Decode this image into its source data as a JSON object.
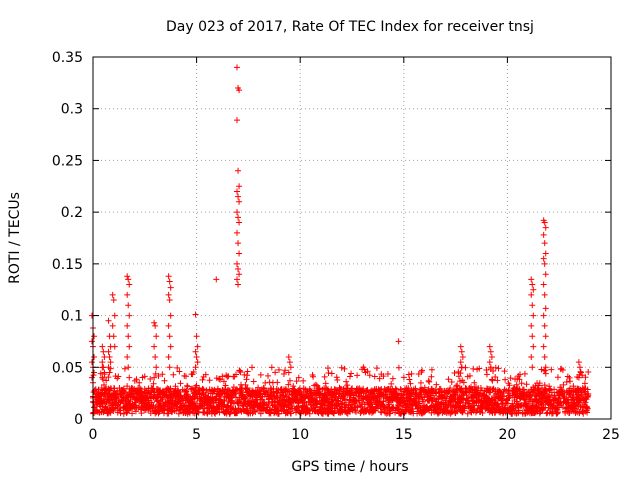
{
  "chart_data": {
    "type": "scatter",
    "title": "Day 023 of 2017, Rate Of TEC Index for receiver tnsj",
    "xlabel": "GPS time / hours",
    "ylabel": "ROTI / TECUs",
    "xlim": [
      0,
      25
    ],
    "ylim": [
      0,
      0.35
    ],
    "xticks": [
      "0",
      "5",
      "10",
      "15",
      "20",
      "25"
    ],
    "yticks": [
      "0",
      "0.05",
      "0.1",
      "0.15",
      "0.2",
      "0.25",
      "0.3",
      "0.35"
    ],
    "grid": true,
    "marker": "+",
    "color": "#ff0000",
    "baseline": {
      "x_start": 0.0,
      "x_end": 23.9,
      "typical_min": 0.005,
      "typical_max": 0.03
    },
    "clusters": [
      {
        "x": 0.0,
        "values": [
          0.1,
          0.088,
          0.08,
          0.075,
          0.07,
          0.06,
          0.055,
          0.05,
          0.045,
          0.04,
          0.035
        ]
      },
      {
        "x": 0.5,
        "values": [
          0.07,
          0.065,
          0.06,
          0.055,
          0.05,
          0.045,
          0.04
        ]
      },
      {
        "x": 0.8,
        "values": [
          0.095,
          0.08,
          0.07,
          0.065,
          0.06,
          0.055,
          0.05,
          0.045
        ]
      },
      {
        "x": 1.0,
        "values": [
          0.12,
          0.115,
          0.1,
          0.09,
          0.08,
          0.07
        ]
      },
      {
        "x": 1.7,
        "values": [
          0.138,
          0.135,
          0.13,
          0.12,
          0.11,
          0.1,
          0.09,
          0.08,
          0.07,
          0.06,
          0.05,
          0.04
        ]
      },
      {
        "x": 3.0,
        "values": [
          0.093,
          0.09,
          0.08,
          0.07,
          0.06,
          0.05,
          0.04
        ]
      },
      {
        "x": 3.7,
        "values": [
          0.138,
          0.133,
          0.127,
          0.12,
          0.115,
          0.1,
          0.09,
          0.08,
          0.07,
          0.06,
          0.05
        ]
      },
      {
        "x": 5.0,
        "values": [
          0.101,
          0.08,
          0.07,
          0.065,
          0.06,
          0.055,
          0.05
        ]
      },
      {
        "x": 6.0,
        "values": [
          0.135
        ]
      },
      {
        "x": 7.0,
        "values": [
          0.34,
          0.32,
          0.318,
          0.289,
          0.24,
          0.225,
          0.22,
          0.215,
          0.21,
          0.2,
          0.195,
          0.19,
          0.18,
          0.17,
          0.16,
          0.15,
          0.145,
          0.14,
          0.135,
          0.13
        ]
      },
      {
        "x": 9.5,
        "values": [
          0.06,
          0.055,
          0.05,
          0.045
        ]
      },
      {
        "x": 13.1,
        "values": [
          0.05,
          0.048,
          0.045
        ]
      },
      {
        "x": 14.8,
        "values": [
          0.075
        ]
      },
      {
        "x": 17.8,
        "values": [
          0.07,
          0.065,
          0.06,
          0.055,
          0.05
        ]
      },
      {
        "x": 19.2,
        "values": [
          0.07,
          0.065,
          0.06,
          0.055,
          0.05
        ]
      },
      {
        "x": 21.2,
        "values": [
          0.135,
          0.13,
          0.125,
          0.12,
          0.11,
          0.1,
          0.09,
          0.08,
          0.07,
          0.06,
          0.05
        ]
      },
      {
        "x": 21.8,
        "values": [
          0.192,
          0.19,
          0.185,
          0.178,
          0.17,
          0.16,
          0.155,
          0.15,
          0.14,
          0.13,
          0.12,
          0.107,
          0.1,
          0.09,
          0.08,
          0.07,
          0.06,
          0.05
        ]
      },
      {
        "x": 23.5,
        "values": [
          0.055,
          0.05,
          0.045,
          0.04
        ]
      }
    ]
  }
}
